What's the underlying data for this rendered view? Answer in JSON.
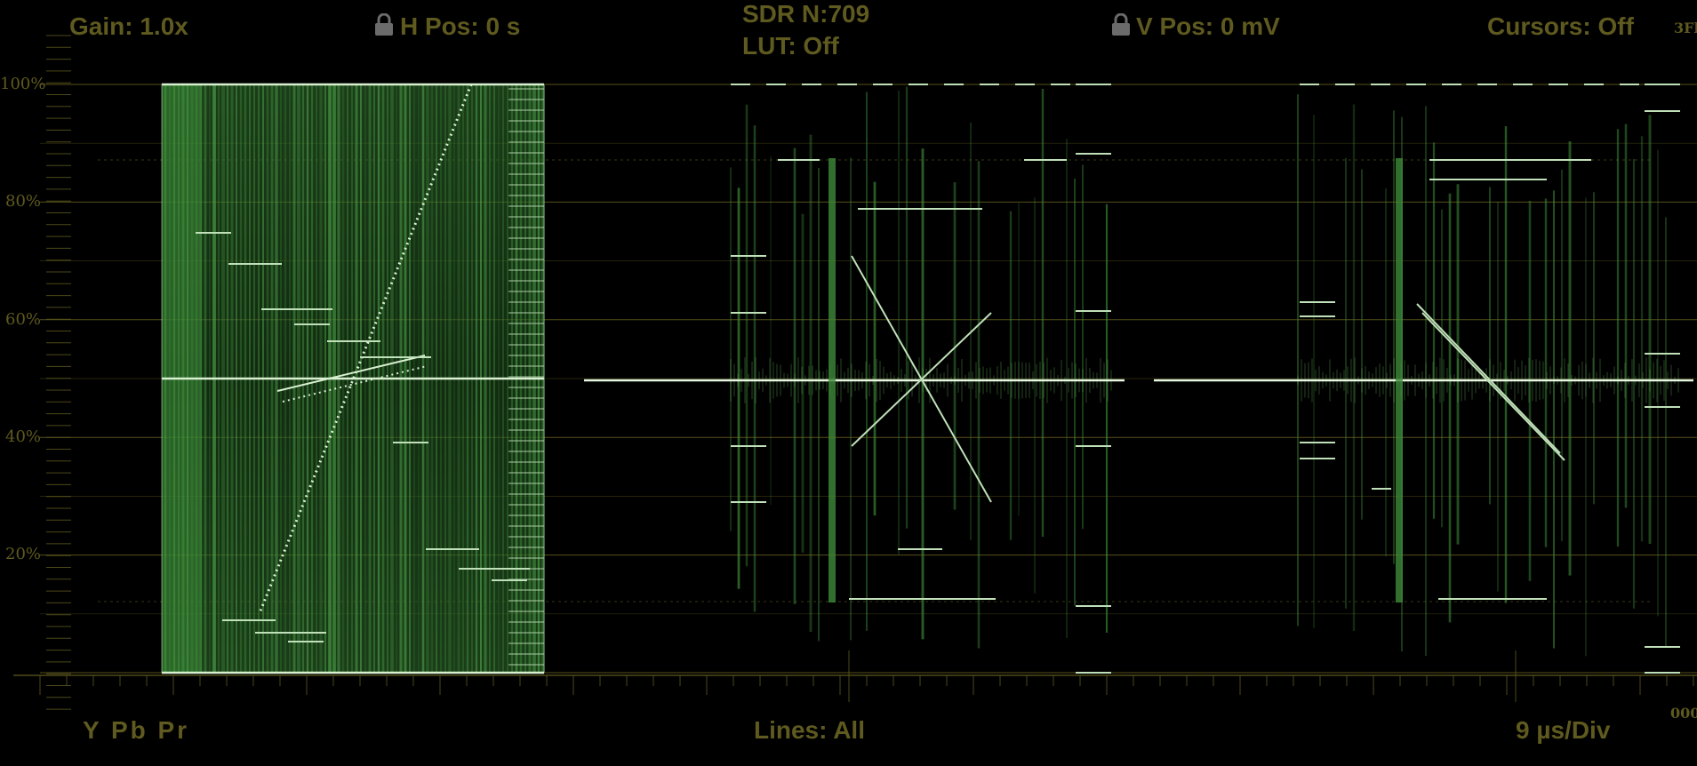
{
  "status": {
    "gain": "Gain: 1.0x",
    "h_pos": "H Pos: 0 s",
    "sdr": "SDR N:709",
    "lut": "LUT: Off",
    "v_pos": "V Pos: 0 mV",
    "cursors": "Cursors: Off",
    "edge_top": "3Fl",
    "edge_bottom": "000"
  },
  "footer": {
    "channels": "Y Pb Pr",
    "lines": "Lines: All",
    "timebase": "9 µs/Div"
  },
  "graticule": {
    "labels": [
      "100%",
      "80%",
      "60%",
      "40%",
      "20%"
    ],
    "values": [
      100,
      80,
      60,
      40,
      20
    ],
    "ymin": 0,
    "ymax": 100
  },
  "colors": {
    "trace": "#4fa44a",
    "trace_bright": "#d8f0d0",
    "graticule": "#5f5a1f",
    "background": "#000000"
  },
  "icons": {
    "h_lock": "lock-icon",
    "v_lock": "lock-icon"
  }
}
